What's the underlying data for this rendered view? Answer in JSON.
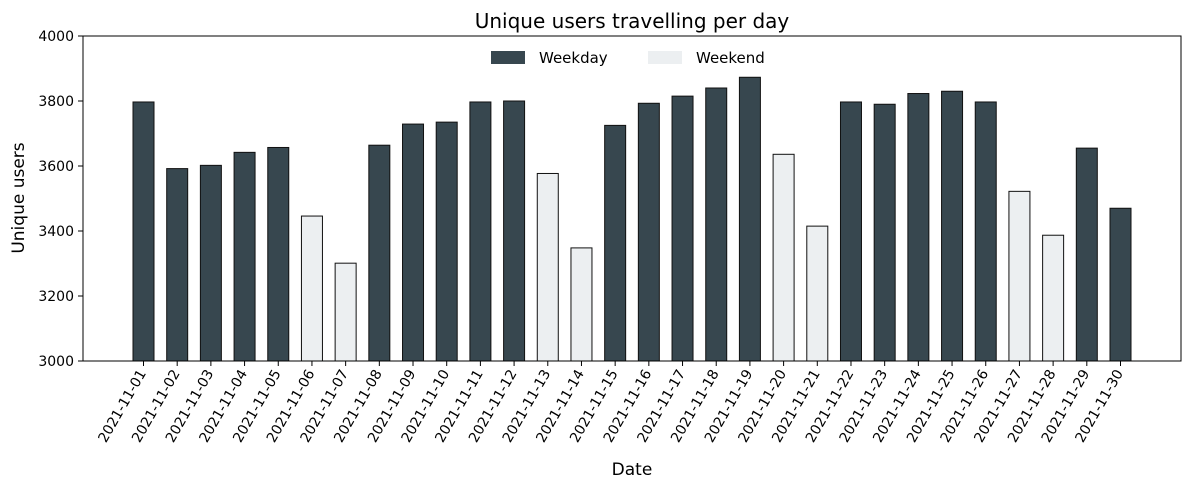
{
  "chart_data": {
    "type": "bar",
    "title": "Unique users travelling per day",
    "xlabel": "Date",
    "ylabel": "Unique users",
    "ylim": [
      3000,
      4000
    ],
    "yticks": [
      3000,
      3200,
      3400,
      3600,
      3800,
      4000
    ],
    "legend_placement": "top-center",
    "series": [
      {
        "name": "Weekday",
        "color": "#37474f"
      },
      {
        "name": "Weekend",
        "color": "#eceff1"
      }
    ],
    "categories": [
      "2021-11-01",
      "2021-11-02",
      "2021-11-03",
      "2021-11-04",
      "2021-11-05",
      "2021-11-06",
      "2021-11-07",
      "2021-11-08",
      "2021-11-09",
      "2021-11-10",
      "2021-11-11",
      "2021-11-12",
      "2021-11-13",
      "2021-11-14",
      "2021-11-15",
      "2021-11-16",
      "2021-11-17",
      "2021-11-18",
      "2021-11-19",
      "2021-11-20",
      "2021-11-21",
      "2021-11-22",
      "2021-11-23",
      "2021-11-24",
      "2021-11-25",
      "2021-11-26",
      "2021-11-27",
      "2021-11-28",
      "2021-11-29",
      "2021-11-30"
    ],
    "values": [
      3797,
      3592,
      3602,
      3642,
      3657,
      3446,
      3301,
      3664,
      3729,
      3735,
      3797,
      3800,
      3577,
      3348,
      3725,
      3793,
      3815,
      3840,
      3873,
      3636,
      3415,
      3797,
      3790,
      3823,
      3830,
      3797,
      3522,
      3387,
      3655,
      3470
    ],
    "day_type": [
      "Weekday",
      "Weekday",
      "Weekday",
      "Weekday",
      "Weekday",
      "Weekend",
      "Weekend",
      "Weekday",
      "Weekday",
      "Weekday",
      "Weekday",
      "Weekday",
      "Weekend",
      "Weekend",
      "Weekday",
      "Weekday",
      "Weekday",
      "Weekday",
      "Weekday",
      "Weekend",
      "Weekend",
      "Weekday",
      "Weekday",
      "Weekday",
      "Weekday",
      "Weekday",
      "Weekend",
      "Weekend",
      "Weekday",
      "Weekday"
    ]
  }
}
